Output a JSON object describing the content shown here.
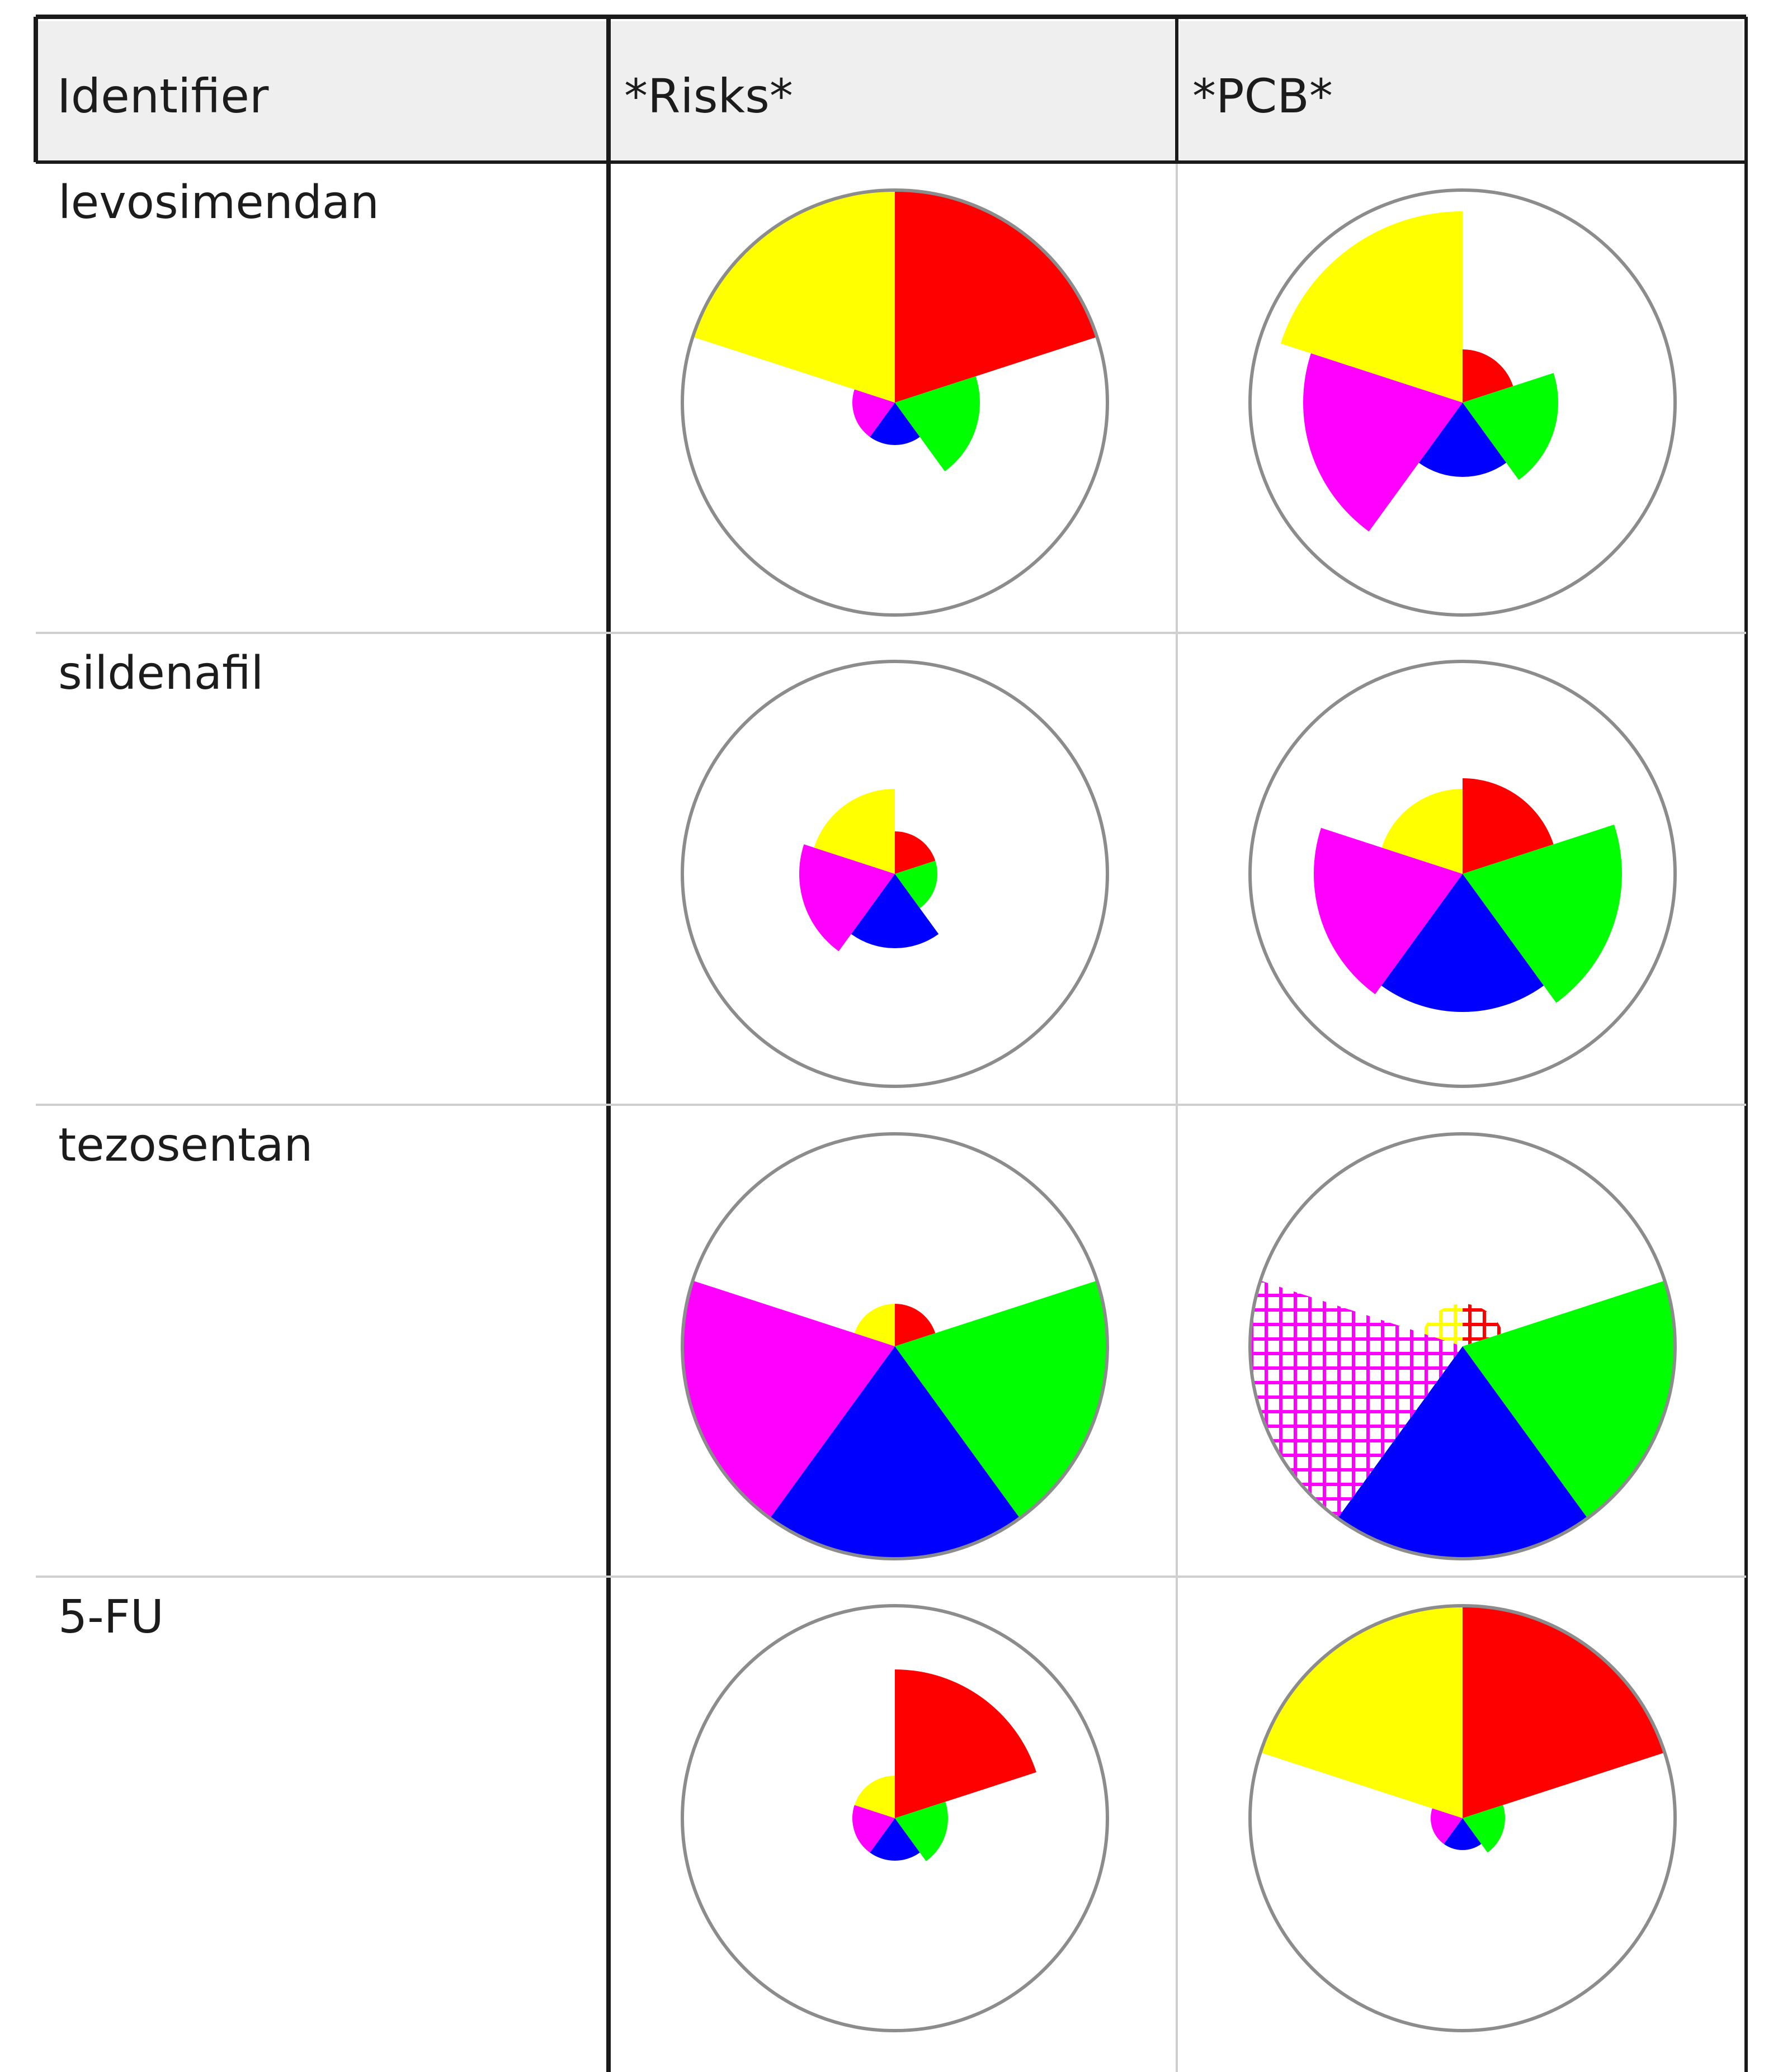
{
  "table": {
    "headers": [
      "Identifier",
      "*Risks*",
      "*PCB*"
    ],
    "rows": [
      {
        "identifier": "levosimendan"
      },
      {
        "identifier": "sildenafil"
      },
      {
        "identifier": "tezosentan"
      },
      {
        "identifier": "5-FU"
      }
    ]
  },
  "colors": {
    "segments": [
      "#ff0000",
      "#00ff00",
      "#0000ff",
      "#ff00ff",
      "#ffff00"
    ],
    "outline": "#8c8c8c",
    "grid": "#cfcfcf",
    "border": "#1a1a1a",
    "header_bg": "#efefef"
  },
  "chart_data": {
    "type": "polar-area",
    "segment_order": [
      "red",
      "green",
      "blue",
      "magenta",
      "yellow"
    ],
    "scale_max": 1.0,
    "charts": [
      {
        "row": "levosimendan",
        "column": "*Risks*",
        "values": [
          1.0,
          0.4,
          0.2,
          0.2,
          1.0
        ]
      },
      {
        "row": "levosimendan",
        "column": "*PCB*",
        "values": [
          0.25,
          0.45,
          0.35,
          0.75,
          0.9
        ]
      },
      {
        "row": "sildenafil",
        "column": "*Risks*",
        "values": [
          0.2,
          0.2,
          0.35,
          0.45,
          0.4
        ]
      },
      {
        "row": "sildenafil",
        "column": "*PCB*",
        "values": [
          0.45,
          0.75,
          0.65,
          0.7,
          0.4
        ]
      },
      {
        "row": "tezosentan",
        "column": "*Risks*",
        "values": [
          0.2,
          1.0,
          1.0,
          1.0,
          0.2
        ]
      },
      {
        "row": "tezosentan",
        "column": "*PCB*",
        "values": [
          0.2,
          1.0,
          1.0,
          1.0,
          0.2
        ],
        "hatched": [
          true,
          false,
          false,
          true,
          true
        ]
      },
      {
        "row": "5-FU",
        "column": "*Risks*",
        "values": [
          0.7,
          0.25,
          0.2,
          0.2,
          0.2
        ]
      },
      {
        "row": "5-FU",
        "column": "*PCB*",
        "values": [
          1.0,
          0.2,
          0.15,
          0.15,
          1.0
        ]
      }
    ]
  }
}
